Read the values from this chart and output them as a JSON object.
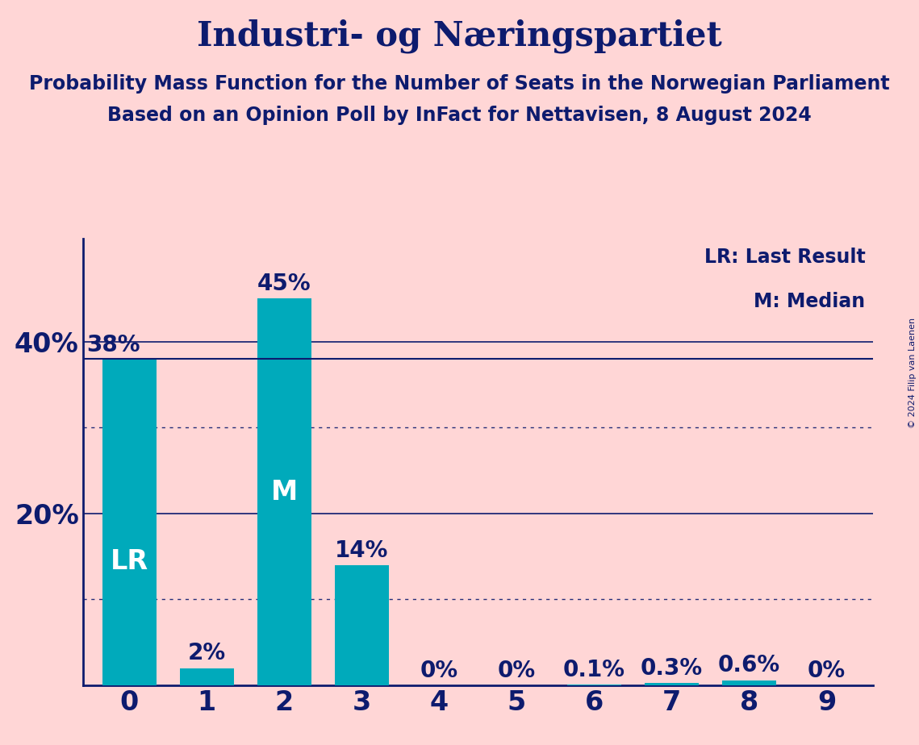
{
  "title": "Industri- og Næringspartiet",
  "subtitle1": "Probability Mass Function for the Number of Seats in the Norwegian Parliament",
  "subtitle2": "Based on an Opinion Poll by InFact for Nettavisen, 8 August 2024",
  "copyright": "© 2024 Filip van Laenen",
  "categories": [
    0,
    1,
    2,
    3,
    4,
    5,
    6,
    7,
    8,
    9
  ],
  "values": [
    0.38,
    0.02,
    0.45,
    0.14,
    0.0,
    0.0,
    0.001,
    0.003,
    0.006,
    0.0
  ],
  "bar_labels": [
    "",
    "2%",
    "45%",
    "14%",
    "0%",
    "0%",
    "0.1%",
    "0.3%",
    "0.6%",
    "0%"
  ],
  "bar_color": "#00AABB",
  "background_color": "#FFD6D6",
  "text_color": "#0D1B6E",
  "bar_label_color_inside": "#FFFFFF",
  "bar_label_color_outside": "#0D1B6E",
  "lr_bar_index": 0,
  "median_bar_index": 2,
  "lr_label": "LR",
  "median_label": "M",
  "legend_lr": "LR: Last Result",
  "legend_m": "M: Median",
  "hline_value": 0.38,
  "hline_label": "38%",
  "yticks": [
    0.0,
    0.2,
    0.4
  ],
  "ytick_labels": [
    "",
    "20%",
    "40%"
  ],
  "ylim": [
    0,
    0.52
  ],
  "solid_gridlines": [
    0.2,
    0.4
  ],
  "dotted_gridlines": [
    0.1,
    0.3
  ],
  "title_fontsize": 30,
  "subtitle_fontsize": 17,
  "bar_label_fontsize": 20,
  "axis_label_fontsize": 24,
  "legend_fontsize": 17,
  "inside_label_fontsize": 24,
  "inside_label_threshold": 0.08
}
